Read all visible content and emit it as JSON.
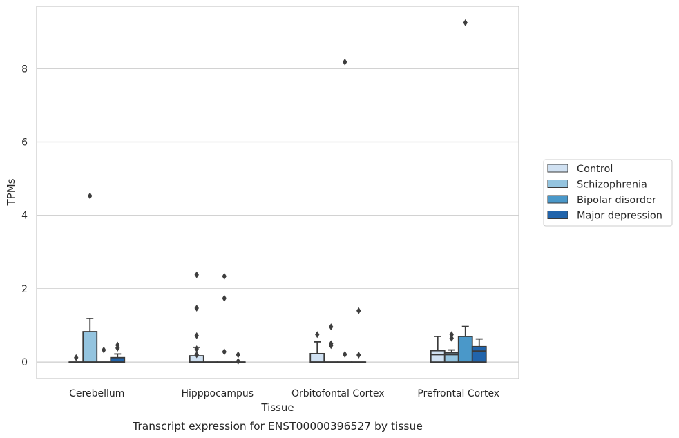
{
  "chart_data": {
    "type": "box",
    "caption": "Transcript expression for ENST00000396527 by tissue",
    "xlabel": "Tissue",
    "ylabel": "TPMs",
    "ylim": [
      -0.45,
      9.7
    ],
    "yticks": [
      0,
      2,
      4,
      6,
      8
    ],
    "grid": "horizontal",
    "legend_position": "right",
    "categories": [
      "Cerebellum",
      "Hipppocampus",
      "Orbitofontal Cortex",
      "Prefrontal Cortex"
    ],
    "series": [
      {
        "name": "Control",
        "color": "#d0e1f2",
        "boxes": [
          {
            "q1": 0,
            "median": 0,
            "q3": 0,
            "whisker_low": 0,
            "whisker_high": 0,
            "outliers": [
              0.12
            ]
          },
          {
            "q1": 0,
            "median": 0,
            "q3": 0.17,
            "whisker_low": 0,
            "whisker_high": 0.4,
            "outliers": [
              2.38,
              1.47,
              0.72,
              0.36,
              0.2
            ]
          },
          {
            "q1": 0,
            "median": 0,
            "q3": 0.23,
            "whisker_low": 0,
            "whisker_high": 0.55,
            "outliers": [
              0.75
            ]
          },
          {
            "q1": 0,
            "median": 0.2,
            "q3": 0.31,
            "whisker_low": 0,
            "whisker_high": 0.7,
            "outliers": []
          }
        ]
      },
      {
        "name": "Schizophrenia",
        "color": "#94c4df",
        "boxes": [
          {
            "q1": 0,
            "median": 0,
            "q3": 0.83,
            "whisker_low": 0,
            "whisker_high": 1.19,
            "outliers": [
              4.53
            ]
          },
          {
            "q1": 0,
            "median": 0,
            "q3": 0,
            "whisker_low": 0,
            "whisker_high": 0,
            "outliers": []
          },
          {
            "q1": 0,
            "median": 0,
            "q3": 0,
            "whisker_low": 0,
            "whisker_high": 0,
            "outliers": [
              0.96,
              0.5,
              0.45
            ]
          },
          {
            "q1": 0,
            "median": 0.2,
            "q3": 0.25,
            "whisker_low": 0,
            "whisker_high": 0.33,
            "outliers": [
              0.75,
              0.65
            ]
          }
        ]
      },
      {
        "name": "Bipolar disorder",
        "color": "#4a98c9",
        "boxes": [
          {
            "q1": 0,
            "median": 0,
            "q3": 0,
            "whisker_low": 0,
            "whisker_high": 0,
            "outliers": [
              0.33
            ]
          },
          {
            "q1": 0,
            "median": 0,
            "q3": 0,
            "whisker_low": 0,
            "whisker_high": 0,
            "outliers": [
              2.34,
              1.74,
              0.28
            ]
          },
          {
            "q1": 0,
            "median": 0,
            "q3": 0,
            "whisker_low": 0,
            "whisker_high": 0,
            "outliers": [
              8.18,
              0.21
            ]
          },
          {
            "q1": 0,
            "median": 0,
            "q3": 0.7,
            "whisker_low": 0,
            "whisker_high": 0.97,
            "outliers": [
              9.25
            ]
          }
        ]
      },
      {
        "name": "Major depression",
        "color": "#2164ab",
        "boxes": [
          {
            "q1": 0,
            "median": 0,
            "q3": 0.12,
            "whisker_low": 0,
            "whisker_high": 0.22,
            "outliers": [
              0.46,
              0.38
            ]
          },
          {
            "q1": 0,
            "median": 0,
            "q3": 0,
            "whisker_low": 0,
            "whisker_high": 0,
            "outliers": [
              0.2,
              0.02
            ]
          },
          {
            "q1": 0,
            "median": 0,
            "q3": 0,
            "whisker_low": 0,
            "whisker_high": 0,
            "outliers": [
              1.4,
              0.19
            ]
          },
          {
            "q1": 0,
            "median": 0.3,
            "q3": 0.42,
            "whisker_low": 0,
            "whisker_high": 0.63,
            "outliers": []
          }
        ]
      }
    ]
  }
}
